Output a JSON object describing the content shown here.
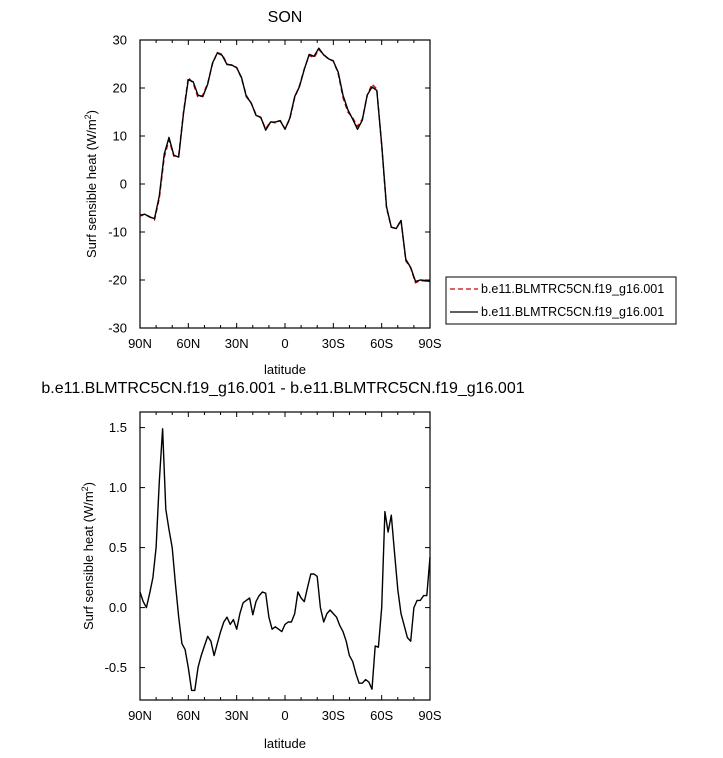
{
  "chart_data": [
    {
      "type": "line",
      "title": "SON",
      "xlabel": "latitude",
      "ylabel": "Surf sensible heat (W/m",
      "ylabel_sup": "2",
      "ylabel_close": ")",
      "xlim": [
        90,
        -90
      ],
      "ylim": [
        -30,
        30
      ],
      "x_ticks": [
        90,
        60,
        30,
        0,
        -30,
        -60,
        -90
      ],
      "x_tick_labels": [
        "90N",
        "60N",
        "30N",
        "0",
        "30S",
        "60S",
        "90S"
      ],
      "y_ticks": [
        -30,
        -20,
        -10,
        0,
        10,
        20,
        30
      ],
      "y_tick_labels": [
        "-30",
        "-20",
        "-10",
        "0",
        "10",
        "20",
        "30"
      ],
      "grid": false,
      "legend": "right",
      "x": [
        90,
        87,
        84,
        81,
        78,
        75,
        72,
        69,
        66,
        63,
        60,
        57,
        54,
        51,
        48,
        45,
        42,
        39,
        36,
        33,
        30,
        27,
        24,
        21,
        18,
        15,
        12,
        9,
        6,
        3,
        0,
        -3,
        -6,
        -9,
        -12,
        -15,
        -18,
        -21,
        -24,
        -27,
        -30,
        -33,
        -36,
        -39,
        -42,
        -45,
        -48,
        -51,
        -54,
        -57,
        -60,
        -63,
        -66,
        -69,
        -72,
        -75,
        -78,
        -81,
        -84,
        -87,
        -90
      ],
      "series": [
        {
          "name": "b.e11.BLMTRC5CN.f19_g16.001",
          "color": "#cc0000",
          "dash": "dashed",
          "values": [
            -6.7,
            -6.3,
            -6.8,
            -7.5,
            -3.0,
            5.5,
            9.2,
            5.8,
            6.0,
            15.0,
            22.2,
            21.0,
            18.0,
            18.5,
            21.0,
            25.0,
            27.4,
            27.0,
            25.0,
            24.7,
            24.3,
            22.0,
            18.5,
            16.8,
            14.5,
            13.8,
            11.5,
            13.0,
            12.7,
            13.2,
            11.5,
            13.5,
            18.0,
            20.5,
            24.0,
            26.8,
            26.3,
            28.0,
            27.0,
            26.0,
            25.7,
            23.0,
            18.0,
            15.0,
            13.8,
            12.0,
            13.5,
            18.5,
            20.8,
            19.8,
            8.0,
            -5.0,
            -9.0,
            -9.3,
            -7.5,
            -16.0,
            -17.5,
            -20.6,
            -20.1,
            -20.2,
            -20.4
          ]
        },
        {
          "name": "b.e11.BLMTRC5CN.f19_g16.001",
          "color": "#000000",
          "dash": "solid",
          "values": [
            -6.5,
            -6.3,
            -6.9,
            -7.2,
            -2.5,
            6.2,
            9.7,
            6.0,
            5.6,
            14.7,
            21.7,
            21.3,
            18.5,
            18.2,
            20.8,
            25.2,
            27.3,
            26.8,
            24.9,
            24.8,
            24.2,
            22.2,
            18.2,
            16.9,
            14.3,
            13.9,
            11.2,
            12.9,
            12.9,
            13.2,
            11.4,
            13.7,
            18.2,
            20.3,
            23.9,
            27.0,
            26.6,
            28.3,
            26.9,
            26.1,
            25.6,
            23.3,
            18.5,
            15.5,
            13.5,
            11.4,
            13.3,
            18.5,
            20.2,
            19.5,
            8.2,
            -4.7,
            -9.0,
            -9.3,
            -7.6,
            -15.7,
            -17.4,
            -20.3,
            -20.0,
            -20.1,
            -20.3
          ]
        }
      ]
    },
    {
      "type": "line",
      "title": "b.e11.BLMTRC5CN.f19_g16.001 - b.e11.BLMTRC5CN.f19_g16.001",
      "xlabel": "latitude",
      "ylabel": "Surf sensible heat (W/m",
      "ylabel_sup": "2",
      "ylabel_close": ")",
      "xlim": [
        90,
        -90
      ],
      "ylim": [
        -0.77,
        1.63
      ],
      "x_ticks": [
        90,
        60,
        30,
        0,
        -30,
        -60,
        -90
      ],
      "x_tick_labels": [
        "90N",
        "60N",
        "30N",
        "0",
        "30S",
        "60S",
        "90S"
      ],
      "y_ticks": [
        -0.5,
        0,
        0.5,
        1.0,
        1.5
      ],
      "y_tick_labels": [
        "-0.5",
        "0.0",
        "0.5",
        "1.0",
        "1.5"
      ],
      "grid": false,
      "x": [
        90,
        88,
        86,
        84,
        82,
        80,
        78,
        76,
        74,
        72,
        70,
        68,
        66,
        64,
        62,
        60,
        58,
        56,
        54,
        52,
        50,
        48,
        46,
        44,
        42,
        40,
        38,
        36,
        34,
        32,
        30,
        28,
        26,
        24,
        22,
        20,
        18,
        16,
        14,
        12,
        10,
        8,
        6,
        4,
        2,
        0,
        -2,
        -4,
        -6,
        -8,
        -10,
        -12,
        -14,
        -16,
        -18,
        -20,
        -22,
        -24,
        -26,
        -28,
        -30,
        -32,
        -34,
        -36,
        -38,
        -40,
        -42,
        -44,
        -46,
        -48,
        -50,
        -52,
        -54,
        -56,
        -58,
        -60,
        -62,
        -64,
        -66,
        -68,
        -70,
        -72,
        -74,
        -76,
        -78,
        -80,
        -82,
        -84,
        -86,
        -88,
        -90
      ],
      "series": [
        {
          "name": "",
          "color": "#000000",
          "dash": "solid",
          "values": [
            0.13,
            0.05,
            0.0,
            0.12,
            0.25,
            0.5,
            1.05,
            1.49,
            0.82,
            0.65,
            0.5,
            0.2,
            -0.08,
            -0.3,
            -0.35,
            -0.5,
            -0.69,
            -0.69,
            -0.5,
            -0.4,
            -0.32,
            -0.24,
            -0.28,
            -0.4,
            -0.3,
            -0.2,
            -0.12,
            -0.08,
            -0.14,
            -0.1,
            -0.18,
            -0.05,
            0.04,
            0.06,
            0.08,
            -0.06,
            0.05,
            0.1,
            0.13,
            0.12,
            -0.08,
            -0.18,
            -0.16,
            -0.18,
            -0.2,
            -0.14,
            -0.12,
            -0.12,
            -0.05,
            0.13,
            0.08,
            0.05,
            0.17,
            0.28,
            0.28,
            0.26,
            0.0,
            -0.12,
            -0.05,
            -0.02,
            -0.05,
            -0.08,
            -0.15,
            -0.2,
            -0.28,
            -0.4,
            -0.45,
            -0.55,
            -0.63,
            -0.63,
            -0.6,
            -0.62,
            -0.68,
            -0.32,
            -0.33,
            0.0,
            0.8,
            0.63,
            0.77,
            0.45,
            0.15,
            -0.05,
            -0.15,
            -0.25,
            -0.28,
            0.0,
            0.06,
            0.06,
            0.1,
            0.1,
            0.42
          ]
        }
      ]
    }
  ]
}
